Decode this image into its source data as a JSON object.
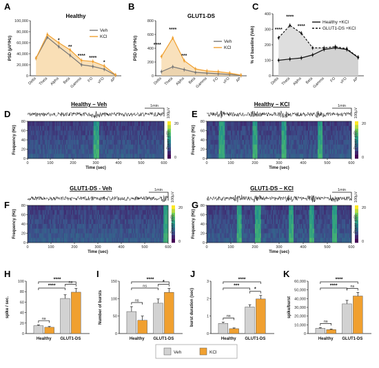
{
  "colors": {
    "veh": "#777777",
    "kcl": "#f0a030",
    "vehFill": "#d2d2d2",
    "kclFill": "#f4c47a",
    "healthyArea": "#b9b9b9",
    "gut1Area": "#d6d6d6"
  },
  "panelLetters": [
    "A",
    "B",
    "C",
    "D",
    "E",
    "F",
    "G",
    "H",
    "I",
    "J",
    "K"
  ],
  "bandCategories": [
    "Delta",
    "Theta",
    "Alpha",
    "Beta",
    "Gamma",
    "FO",
    "vFO",
    "AP"
  ],
  "chart_data": [
    {
      "type": "line",
      "panel": "A",
      "title": "Healthy",
      "ylabel": "PSD (µV²/Hz)",
      "ylim": [
        0,
        100000
      ],
      "yticks": [
        "0",
        "20,000",
        "40,000",
        "60,000",
        "80,000",
        "100,000"
      ],
      "categories": [
        "Delta",
        "Theta",
        "Alpha",
        "Beta",
        "Gamma",
        "FO",
        "vFO",
        "AP"
      ],
      "series": [
        {
          "name": "Veh",
          "values": [
            32000,
            70000,
            53000,
            37000,
            20000,
            17000,
            12000,
            1000
          ]
        },
        {
          "name": "KCl",
          "values": [
            32000,
            75000,
            60000,
            47000,
            28000,
            26000,
            18000,
            1500
          ]
        }
      ],
      "annotations": [
        "*",
        "**",
        "****",
        "****",
        "*"
      ]
    },
    {
      "type": "line",
      "panel": "B",
      "title": "GLUT1-DS",
      "ylabel": "PSD (µV²/Hz)",
      "ylim": [
        0,
        800
      ],
      "yticks": [
        "0",
        "200",
        "400",
        "600",
        "800"
      ],
      "categories": [
        "Delta",
        "Theta",
        "Alpha",
        "Beta",
        "Gamma",
        "FO",
        "vFO",
        "AP"
      ],
      "series": [
        {
          "name": "Veh",
          "values": [
            60,
            130,
            90,
            50,
            40,
            30,
            20,
            5
          ]
        },
        {
          "name": "KCl",
          "values": [
            280,
            550,
            220,
            100,
            70,
            60,
            40,
            10
          ]
        }
      ],
      "annotations": [
        "****",
        "****",
        "***"
      ]
    },
    {
      "type": "line",
      "panel": "C",
      "ylabel": "% of baseline (Veh)",
      "ylim": [
        0,
        400
      ],
      "yticks": [
        "0",
        "100",
        "200",
        "300",
        "400"
      ],
      "categories": [
        "Delta",
        "Theta",
        "Alpha",
        "Beta",
        "Gamma",
        "FO",
        "vFO",
        "AP"
      ],
      "series": [
        {
          "name": "Healthy +KCl",
          "values": [
            100,
            108,
            115,
            135,
            170,
            180,
            170,
            118
          ]
        },
        {
          "name": "GLUT1-DS +KCl",
          "values": [
            245,
            325,
            275,
            180,
            180,
            188,
            175,
            120
          ]
        }
      ],
      "annotations": [
        "****",
        "****",
        "****"
      ]
    },
    {
      "type": "heatmap",
      "panel": "D",
      "title": "Healthy – Veh",
      "xlabel": "Time (sec)",
      "ylabel": "Frequency (Hz)",
      "xticks": [
        "0",
        "100",
        "200",
        "300",
        "400",
        "500",
        "600"
      ],
      "yticks": [
        "0",
        "20",
        "40",
        "60",
        "80"
      ],
      "colorbar": {
        "label": "Power (dB)",
        "ticks": [
          "0",
          "20"
        ]
      },
      "scalebar": {
        "time": "1min",
        "amp": "100µV"
      }
    },
    {
      "type": "heatmap",
      "panel": "E",
      "title": "Healthy – KCl",
      "xlabel": "Time (sec)",
      "ylabel": "Frequency (Hz)",
      "xticks": [
        "0",
        "100",
        "200",
        "300",
        "400",
        "500",
        "600"
      ],
      "yticks": [
        "0",
        "20",
        "40",
        "60",
        "80"
      ],
      "colorbar": {
        "label": "Power (dB)",
        "ticks": [
          "0",
          "20"
        ]
      },
      "scalebar": {
        "time": "1min",
        "amp": "100µV"
      }
    },
    {
      "type": "heatmap",
      "panel": "F",
      "title": "GLUT1-DS - Veh",
      "xlabel": "Time (sec)",
      "ylabel": "Frequency (Hz)",
      "xticks": [
        "0",
        "100",
        "200",
        "300",
        "400",
        "500",
        "600"
      ],
      "yticks": [
        "0",
        "20",
        "40",
        "60",
        "80"
      ],
      "colorbar": {
        "label": "Power (dB)",
        "ticks": [
          "0",
          "20"
        ]
      },
      "scalebar": {
        "time": "1min",
        "amp": "100µV"
      }
    },
    {
      "type": "heatmap",
      "panel": "G",
      "title": "GLUT1-DS – KCl",
      "xlabel": "Time (sec)",
      "ylabel": "Frequency (Hz)",
      "xticks": [
        "0",
        "100",
        "200",
        "300",
        "400",
        "500",
        "600"
      ],
      "yticks": [
        "0",
        "20",
        "40",
        "60",
        "80"
      ],
      "colorbar": {
        "label": "Power (dB)",
        "ticks": [
          "0",
          "20"
        ]
      },
      "scalebar": {
        "time": "1min",
        "amp": "100µV"
      }
    },
    {
      "type": "bar",
      "panel": "H",
      "ylabel": "spike / sec.",
      "ylim": [
        0,
        100
      ],
      "yticks": [
        "0",
        "20",
        "40",
        "60",
        "80",
        "100"
      ],
      "categories": [
        "Healthy",
        "GLUT1-DS"
      ],
      "series": [
        {
          "name": "Veh",
          "values": [
            15,
            67
          ],
          "err": [
            1.5,
            7
          ]
        },
        {
          "name": "KCl",
          "values": [
            12,
            79
          ],
          "err": [
            1.5,
            7
          ]
        }
      ],
      "brackets": [
        [
          "ns",
          0,
          1
        ],
        [
          "ns",
          2,
          3
        ],
        [
          "****",
          0,
          2
        ],
        [
          "****",
          0,
          3
        ]
      ]
    },
    {
      "type": "bar",
      "panel": "I",
      "ylabel": "Number of bursts",
      "ylim": [
        0,
        150
      ],
      "yticks": [
        "0",
        "50",
        "100",
        "150"
      ],
      "categories": [
        "Healthy",
        "GLUT1-DS"
      ],
      "series": [
        {
          "name": "Veh",
          "values": [
            63,
            87
          ],
          "err": [
            14,
            12
          ]
        },
        {
          "name": "KCl",
          "values": [
            38,
            118
          ],
          "err": [
            12,
            11
          ]
        }
      ],
      "brackets": [
        [
          "ns",
          0,
          1
        ],
        [
          "*",
          2,
          3
        ],
        [
          "ns",
          0,
          2
        ],
        [
          "****",
          0,
          3
        ]
      ]
    },
    {
      "type": "bar",
      "panel": "J",
      "ylabel": "burst duration (sec)",
      "ylim": [
        0,
        3
      ],
      "yticks": [
        "0",
        "1",
        "2",
        "3"
      ],
      "categories": [
        "Healthy",
        "GLUT1-DS"
      ],
      "series": [
        {
          "name": "Veh",
          "values": [
            0.58,
            1.52
          ],
          "err": [
            0.07,
            0.13
          ]
        },
        {
          "name": "KCl",
          "values": [
            0.28,
            1.98
          ],
          "err": [
            0.04,
            0.2
          ]
        }
      ],
      "brackets": [
        [
          "ns",
          0,
          1
        ],
        [
          "*",
          2,
          3
        ],
        [
          "***",
          0,
          2
        ],
        [
          "****",
          0,
          3
        ]
      ]
    },
    {
      "type": "bar",
      "panel": "K",
      "ylabel": "spike/burst",
      "ylim": [
        0,
        60000
      ],
      "yticks": [
        "0",
        "10,000",
        "20,000",
        "30,000",
        "40,000",
        "50,000",
        "60,000"
      ],
      "categories": [
        "Healthy",
        "GLUT1-DS"
      ],
      "series": [
        {
          "name": "Veh",
          "values": [
            6000,
            34000
          ],
          "err": [
            800,
            4000
          ]
        },
        {
          "name": "KCl",
          "values": [
            4500,
            43000
          ],
          "err": [
            700,
            4000
          ]
        }
      ],
      "brackets": [
        [
          "ns",
          0,
          1
        ],
        [
          "ns",
          2,
          3
        ],
        [
          "****",
          0,
          2
        ],
        [
          "****",
          0,
          3
        ]
      ]
    }
  ],
  "legendBottom": {
    "veh": "Veh",
    "kcl": "KCl"
  }
}
